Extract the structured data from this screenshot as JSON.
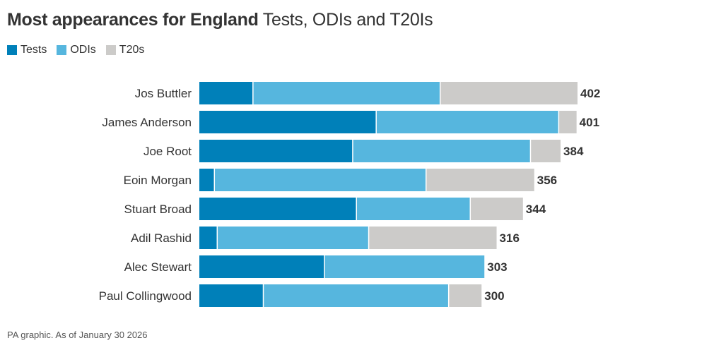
{
  "title": {
    "bold": "Most appearances for England",
    "rest": "Tests, ODIs and T20Is"
  },
  "footer": "PA graphic. As of January 30 2026",
  "chart_data": {
    "type": "bar",
    "orientation": "horizontal",
    "stacked": true,
    "title": "Most appearances for England Tests, ODIs and T20Is",
    "categories": [
      "Jos Buttler",
      "James Anderson",
      "Joe Root",
      "Eoin Morgan",
      "Stuart Broad",
      "Adil Rashid",
      "Alec Stewart",
      "Paul Collingwood"
    ],
    "series": [
      {
        "name": "Tests",
        "color": "#0080b9",
        "values": [
          57,
          188,
          163,
          16,
          167,
          19,
          133,
          68
        ]
      },
      {
        "name": "ODIs",
        "color": "#56b6de",
        "values": [
          199,
          194,
          189,
          225,
          121,
          161,
          170,
          197
        ]
      },
      {
        "name": "T20s",
        "color": "#cccbc9",
        "values": [
          146,
          19,
          32,
          115,
          56,
          136,
          0,
          35
        ]
      }
    ],
    "totals": [
      402,
      401,
      384,
      356,
      344,
      316,
      303,
      300
    ],
    "legend": "top-left",
    "grid": false
  }
}
